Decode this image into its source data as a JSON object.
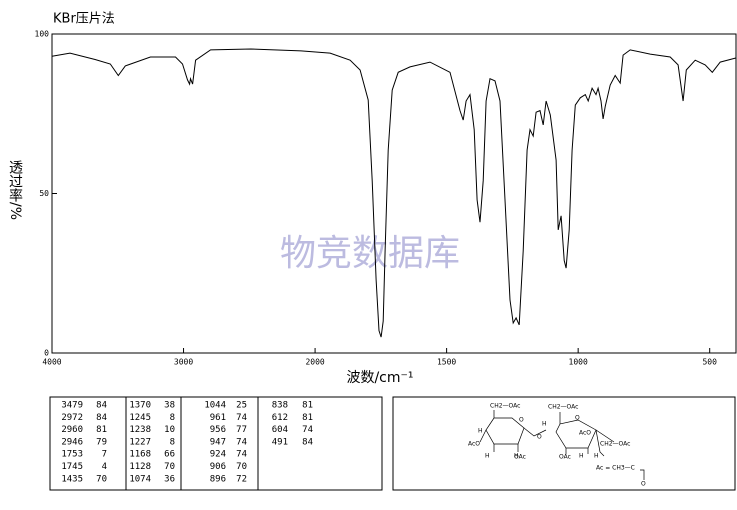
{
  "chart_data": {
    "type": "line",
    "title": "KBr压片法",
    "x_label": "波数/cm⁻¹",
    "y_label": "透过率/%",
    "watermark": "物竞数据库",
    "x": [
      4000,
      3863,
      3672,
      3557,
      3496,
      3443,
      3252,
      3061,
      3008,
      2970,
      2954,
      2947,
      2931,
      2908,
      2794,
      2489,
      2107,
      1943,
      1867,
      1829,
      1798,
      1783,
      1768,
      1757,
      1749,
      1741,
      1734,
      1722,
      1707,
      1684,
      1639,
      1563,
      1487,
      1449,
      1437,
      1426,
      1411,
      1395,
      1384,
      1373,
      1361,
      1350,
      1335,
      1316,
      1297,
      1278,
      1259,
      1247,
      1236,
      1224,
      1209,
      1194,
      1183,
      1171,
      1160,
      1145,
      1133,
      1122,
      1106,
      1084,
      1076,
      1065,
      1053,
      1046,
      1034,
      1023,
      1011,
      992,
      973,
      962,
      947,
      932,
      924,
      913,
      905,
      897,
      878,
      859,
      840,
      829,
      802,
      726,
      650,
      620,
      601,
      589,
      555,
      517,
      490,
      460,
      399
    ],
    "series": [
      {
        "name": "spectrum",
        "color": "#000000",
        "values": [
          93,
          94,
          92,
          90.6,
          87,
          90,
          92.8,
          92.8,
          90.6,
          85.6,
          84.3,
          86,
          84.3,
          91.8,
          95,
          95.3,
          94.7,
          94,
          91.8,
          88.7,
          79.3,
          54,
          23,
          7,
          5,
          10,
          32,
          63.6,
          82.4,
          88,
          89.7,
          91.2,
          88,
          76,
          73,
          79,
          81,
          70,
          48,
          41,
          54,
          79,
          86,
          85.3,
          79,
          48,
          16.6,
          9.4,
          11,
          8.8,
          32,
          63.6,
          70,
          68,
          75.5,
          76,
          71.5,
          79,
          74.6,
          60.5,
          38.6,
          43,
          29,
          26.6,
          38.6,
          63.6,
          77.7,
          80,
          81,
          79,
          83,
          81,
          83,
          79,
          73.4,
          77.4,
          84,
          87,
          84.6,
          93.4,
          95,
          93.7,
          92.8,
          90.3,
          79,
          88.7,
          91.8,
          90.3,
          88,
          91.2,
          92.5
        ]
      }
    ],
    "xlim": [
      4000,
      400
    ],
    "xticks": [
      4000,
      3000,
      2000,
      1500,
      1000,
      500
    ],
    "ylim": [
      0,
      100
    ],
    "yticks": [
      0,
      50,
      100
    ]
  },
  "table": {
    "columns": [
      [
        [
          "3479",
          "84"
        ],
        [
          "2972",
          "84"
        ],
        [
          "2960",
          "81"
        ],
        [
          "2946",
          "79"
        ],
        [
          "1753",
          "7"
        ],
        [
          "1745",
          "4"
        ],
        [
          "1435",
          "70"
        ]
      ],
      [
        [
          "1370",
          "38"
        ],
        [
          "1245",
          "8"
        ],
        [
          "1238",
          "10"
        ],
        [
          "1227",
          "8"
        ],
        [
          "1168",
          "66"
        ],
        [
          "1128",
          "70"
        ],
        [
          "1074",
          "36"
        ]
      ],
      [
        [
          "1044",
          "25"
        ],
        [
          "961",
          "74"
        ],
        [
          "956",
          "77"
        ],
        [
          "947",
          "74"
        ],
        [
          "924",
          "74"
        ],
        [
          "906",
          "70"
        ],
        [
          "896",
          "72"
        ]
      ],
      [
        [
          "838",
          "81"
        ],
        [
          "612",
          "81"
        ],
        [
          "604",
          "74"
        ],
        [
          "491",
          "84"
        ]
      ]
    ]
  },
  "structure": {
    "labels": [
      "CH2—OAc",
      "O",
      "H",
      "AcO",
      "H",
      "H",
      "OAc",
      "H",
      "O",
      "CH2—OAc",
      "O",
      "AcO",
      "H",
      "OAc",
      "H",
      "CH2—OAc",
      "Ac = CH3—C",
      "O"
    ]
  }
}
